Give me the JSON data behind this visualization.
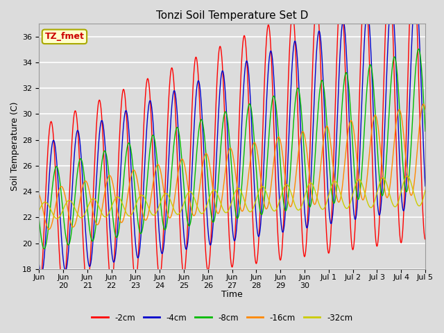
{
  "title": "Tonzi Soil Temperature Set D",
  "xlabel": "Time",
  "ylabel": "Soil Temperature (C)",
  "ylim": [
    18,
    37
  ],
  "series_labels": [
    "-2cm",
    "-4cm",
    "-8cm",
    "-16cm",
    "-32cm"
  ],
  "series_colors": [
    "#ff0000",
    "#0000cc",
    "#00bb00",
    "#ff8800",
    "#cccc00"
  ],
  "annotation_text": "TZ_fmet",
  "annotation_bg": "#ffffcc",
  "annotation_border": "#aaaa00",
  "bg_color": "#dcdcdc",
  "grid_color": "#ffffff",
  "n_points": 1600,
  "t_end": 16.0,
  "base_temp": 22.5,
  "trend_2cm": 0.55,
  "trend_4cm": 0.55,
  "trend_8cm": 0.45,
  "trend_16cm": 0.3,
  "trend_32cm": 0.1,
  "amp_start": [
    6.5,
    5.0,
    3.0,
    1.5,
    0.65
  ],
  "amp_end": [
    11.0,
    8.5,
    5.5,
    3.5,
    1.2
  ],
  "phases": [
    0.0,
    0.1,
    0.22,
    0.42,
    0.75
  ],
  "period": 1.0,
  "x_tick_positions": [
    0,
    1,
    2,
    3,
    4,
    5,
    6,
    7,
    8,
    9,
    10,
    11,
    12,
    13,
    14,
    15,
    16
  ],
  "x_tick_labels": [
    "Jun",
    "Jun\n20",
    "Jun\n21",
    "Jun\n22",
    "Jun\n23",
    "Jun\n24",
    "Jun\n25",
    "Jun\n26",
    "Jun\n27",
    "Jun\n28",
    "Jun\n29",
    "Jun\n30",
    "Jul 1",
    "Jul 2",
    "Jul 3",
    "Jul 4",
    "Jul 5"
  ],
  "y_ticks": [
    18,
    20,
    22,
    24,
    26,
    28,
    30,
    32,
    34,
    36
  ]
}
